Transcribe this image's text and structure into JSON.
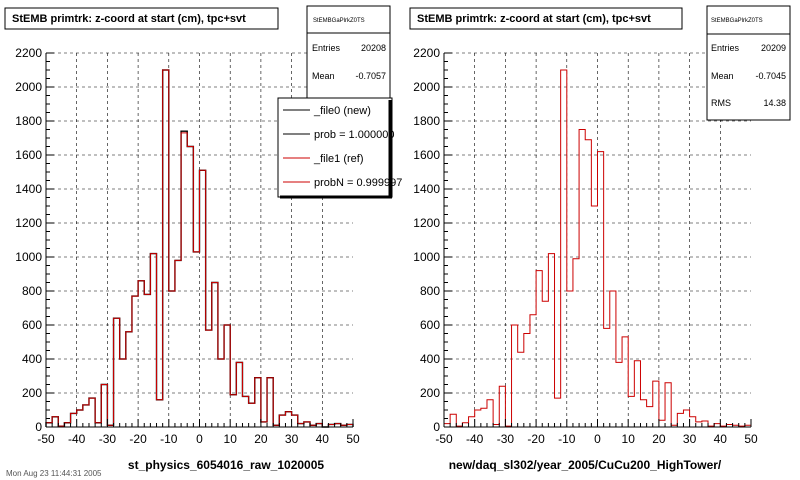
{
  "colors": {
    "ref": "#cc0000",
    "new": "#000000",
    "grid": "#000000",
    "axes": "#000000"
  },
  "chart_data": [
    {
      "type": "bar",
      "title": "StEMB primtrk: z-coord at start (cm), tpc+svt",
      "xlabel": "st_physics_6054016_raw_1020005",
      "ylabel": "",
      "xlim": [
        -50,
        50
      ],
      "ylim": [
        0,
        2200
      ],
      "bin_width": 2,
      "grid": true,
      "x_ticks": [
        "-50",
        "-40",
        "-30",
        "-20",
        "-10",
        "0",
        "10",
        "20",
        "30",
        "40",
        "50"
      ],
      "y_ticks": [
        "0",
        "200",
        "400",
        "600",
        "800",
        "1000",
        "1200",
        "1400",
        "1600",
        "1800",
        "2000",
        "2200"
      ],
      "series": [
        {
          "name": "_file0 (new)",
          "color": "#000000",
          "values": [
            25,
            60,
            5,
            25,
            80,
            100,
            130,
            170,
            25,
            250,
            10,
            640,
            400,
            560,
            770,
            860,
            780,
            1020,
            160,
            2100,
            800,
            980,
            1740,
            1650,
            1030,
            1510,
            570,
            850,
            400,
            600,
            190,
            380,
            180,
            140,
            290,
            30,
            290,
            10,
            70,
            90,
            70,
            20,
            30,
            10,
            20,
            0,
            15,
            20,
            10,
            15
          ]
        },
        {
          "name": "_file1 (ref)",
          "color": "#cc0000",
          "values": [
            25,
            60,
            5,
            25,
            80,
            100,
            130,
            170,
            25,
            250,
            10,
            640,
            400,
            560,
            770,
            860,
            780,
            1020,
            160,
            2100,
            800,
            980,
            1730,
            1650,
            1030,
            1510,
            570,
            850,
            400,
            600,
            190,
            380,
            180,
            140,
            290,
            30,
            290,
            10,
            70,
            90,
            70,
            20,
            30,
            10,
            20,
            0,
            15,
            20,
            10,
            15
          ]
        }
      ],
      "stats": {
        "header": "StEMBGaPlrkZ0TS",
        "rows": [
          {
            "label": "Entries",
            "value": "20208"
          },
          {
            "label": "Mean",
            "value": "-0.7057"
          }
        ]
      },
      "legend": {
        "placement": "top-right",
        "entries": [
          {
            "text": "_file0 (new)",
            "color": "#000000"
          },
          {
            "text": "prob = 1.000000",
            "color": "#000000"
          },
          {
            "text": "_file1 (ref)",
            "color": "#cc0000"
          },
          {
            "text": "probN = 0.999997",
            "color": "#cc0000"
          }
        ]
      }
    },
    {
      "type": "bar",
      "title": "StEMB primtrk: z-coord at start (cm), tpc+svt",
      "xlabel": "new/daq_sl302/year_2005/CuCu200_HighTower/",
      "ylabel": "",
      "xlim": [
        -50,
        50
      ],
      "ylim": [
        0,
        2200
      ],
      "bin_width": 2,
      "grid": true,
      "x_ticks": [
        "-50",
        "-40",
        "-30",
        "-20",
        "-10",
        "0",
        "10",
        "20",
        "30",
        "40",
        "50"
      ],
      "y_ticks": [
        "0",
        "200",
        "400",
        "600",
        "800",
        "1000",
        "1200",
        "1400",
        "1600",
        "1800",
        "2000",
        "2200"
      ],
      "series": [
        {
          "name": "",
          "color": "#cc0000",
          "values": [
            20,
            75,
            5,
            25,
            60,
            100,
            110,
            160,
            15,
            240,
            5,
            600,
            440,
            550,
            660,
            920,
            740,
            1020,
            170,
            2100,
            800,
            990,
            1750,
            1690,
            1300,
            1620,
            580,
            800,
            380,
            530,
            180,
            390,
            160,
            120,
            270,
            40,
            260,
            10,
            80,
            100,
            60,
            30,
            35,
            5,
            20,
            5,
            15,
            10,
            5,
            10
          ]
        }
      ],
      "stats": {
        "header": "StEMBGaPlrkZ0TS",
        "rows": [
          {
            "label": "Entries",
            "value": "20209"
          },
          {
            "label": "Mean",
            "value": "-0.7045"
          },
          {
            "label": "RMS",
            "value": "14.38"
          }
        ]
      },
      "legend": null
    }
  ],
  "footer": "Mon Aug 23 11:44:31 2005"
}
